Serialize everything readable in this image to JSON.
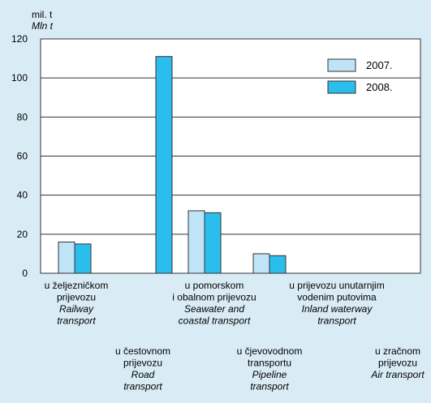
{
  "chart_data": {
    "type": "bar",
    "unit_label": "mil. t",
    "unit_label_en": "Mln t",
    "ylim": [
      0,
      120
    ],
    "yticks": [
      "0",
      "20",
      "40",
      "60",
      "80",
      "100",
      "120"
    ],
    "grid": true,
    "legend_position": "top-right",
    "categories": [
      {
        "hr": [
          "u željezničkom",
          "prijevozu"
        ],
        "en": [
          "Railway",
          "transport"
        ]
      },
      {
        "hr": [
          "u čestovnom",
          "prijevozu"
        ],
        "en": [
          "Road",
          "transport"
        ]
      },
      {
        "hr": [
          "u pomorskom",
          "i obalnom prijevozu"
        ],
        "en": [
          "Seawater and",
          "coastal transport"
        ]
      },
      {
        "hr": [
          "u čjevovodnom",
          "transportu"
        ],
        "en": [
          "Pipeline",
          "transport"
        ]
      },
      {
        "hr": [
          "u prijevozu unutarnjim",
          "vodenim putovima"
        ],
        "en": [
          "Inland waterway",
          "transport"
        ]
      },
      {
        "hr": [
          "u zračnom",
          "prijevozu"
        ],
        "en": [
          "Air transport"
        ]
      }
    ],
    "series": [
      {
        "name": "2007.",
        "color": "#bfe4f8",
        "values": [
          16,
          0,
          32,
          10,
          0,
          0
        ]
      },
      {
        "name": "2008.",
        "color": "#2bbdec",
        "values": [
          15,
          111,
          31,
          9,
          0,
          0
        ]
      }
    ]
  }
}
